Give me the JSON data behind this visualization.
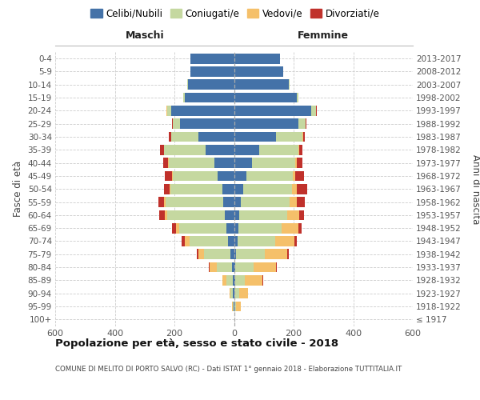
{
  "age_groups": [
    "100+",
    "95-99",
    "90-94",
    "85-89",
    "80-84",
    "75-79",
    "70-74",
    "65-69",
    "60-64",
    "55-59",
    "50-54",
    "45-49",
    "40-44",
    "35-39",
    "30-34",
    "25-29",
    "20-24",
    "15-19",
    "10-14",
    "5-9",
    "0-4"
  ],
  "birth_years": [
    "≤ 1917",
    "1918-1922",
    "1923-1927",
    "1928-1932",
    "1933-1937",
    "1938-1942",
    "1943-1947",
    "1948-1952",
    "1953-1957",
    "1958-1962",
    "1963-1967",
    "1968-1972",
    "1973-1977",
    "1978-1982",
    "1983-1987",
    "1988-1992",
    "1993-1997",
    "1998-2002",
    "2003-2007",
    "2008-2012",
    "2013-2017"
  ],
  "males": {
    "celibi": [
      0,
      2,
      3,
      5,
      8,
      12,
      20,
      25,
      30,
      35,
      38,
      55,
      65,
      95,
      120,
      180,
      210,
      165,
      155,
      145,
      145
    ],
    "coniugati": [
      0,
      3,
      8,
      20,
      50,
      90,
      130,
      160,
      195,
      195,
      175,
      150,
      155,
      140,
      90,
      25,
      15,
      5,
      2,
      0,
      0
    ],
    "vedovi": [
      0,
      2,
      5,
      15,
      25,
      18,
      15,
      10,
      8,
      5,
      4,
      2,
      2,
      1,
      2,
      1,
      1,
      0,
      0,
      0,
      0
    ],
    "divorziati": [
      0,
      0,
      0,
      0,
      2,
      5,
      10,
      12,
      18,
      20,
      18,
      25,
      15,
      12,
      8,
      3,
      1,
      0,
      0,
      0,
      0
    ]
  },
  "females": {
    "nubili": [
      0,
      2,
      2,
      5,
      5,
      8,
      12,
      15,
      18,
      22,
      30,
      42,
      60,
      85,
      140,
      215,
      260,
      210,
      185,
      165,
      155
    ],
    "coniugate": [
      0,
      5,
      15,
      30,
      60,
      95,
      125,
      145,
      160,
      165,
      165,
      155,
      145,
      130,
      90,
      25,
      15,
      5,
      2,
      0,
      0
    ],
    "vedove": [
      1,
      15,
      30,
      60,
      75,
      75,
      65,
      55,
      40,
      25,
      15,
      8,
      5,
      3,
      2,
      1,
      1,
      0,
      0,
      0,
      0
    ],
    "divorziate": [
      0,
      1,
      1,
      2,
      3,
      5,
      10,
      12,
      18,
      25,
      35,
      30,
      20,
      12,
      5,
      2,
      1,
      0,
      0,
      0,
      0
    ]
  },
  "colors": {
    "celibi": "#4472a8",
    "coniugati": "#c5d8a0",
    "vedovi": "#f5c06a",
    "divorziati": "#c0312b"
  },
  "xlim": 600,
  "title": "Popolazione per età, sesso e stato civile - 2018",
  "subtitle": "COMUNE DI MELITO DI PORTO SALVO (RC) - Dati ISTAT 1° gennaio 2018 - Elaborazione TUTTITALIA.IT",
  "ylabel_left": "Fasce di età",
  "ylabel_right": "Anni di nascita",
  "label_maschi": "Maschi",
  "label_femmine": "Femmine",
  "legend_labels": [
    "Celibi/Nubili",
    "Coniugati/e",
    "Vedovi/e",
    "Divorziati/e"
  ]
}
